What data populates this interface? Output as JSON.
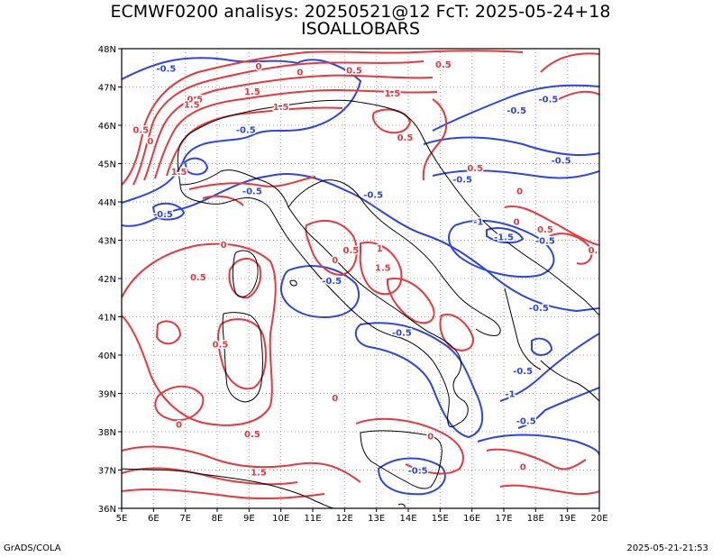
{
  "header": {
    "line1": "ECMWF0200 analisys: 20250521@12 FcT: 2025-05-24+18",
    "line2": "ISOALLOBARS"
  },
  "footer": {
    "left": "GrADS/COLA",
    "right": "2025-05-21-21:53"
  },
  "map": {
    "lon_range": [
      5,
      20
    ],
    "lat_range": [
      36,
      48
    ],
    "lon_ticks": [
      "5E",
      "6E",
      "7E",
      "8E",
      "9E",
      "10E",
      "11E",
      "12E",
      "13E",
      "14E",
      "15E",
      "16E",
      "17E",
      "18E",
      "19E",
      "20E"
    ],
    "lat_ticks": [
      "36N",
      "37N",
      "38N",
      "39N",
      "40N",
      "41N",
      "42N",
      "43N",
      "44N",
      "45N",
      "46N",
      "47N",
      "48N"
    ],
    "grid": true,
    "colors": {
      "positive": "#e8383d",
      "negative": "#2d45e6",
      "coast": "#000000",
      "grid": "#a0a0a0"
    },
    "contour_labels": [
      {
        "text": "-0.5",
        "sign": "neg",
        "lon": 6.4,
        "lat": 47.5
      },
      {
        "text": "0",
        "sign": "pos",
        "lon": 9.3,
        "lat": 47.55
      },
      {
        "text": "0.5",
        "sign": "pos",
        "lon": 7.3,
        "lat": 46.7
      },
      {
        "text": "1.5",
        "sign": "pos",
        "lon": 7.2,
        "lat": 46.55
      },
      {
        "text": "1.5",
        "sign": "pos",
        "lon": 9.1,
        "lat": 46.9
      },
      {
        "text": "1.5",
        "sign": "pos",
        "lon": 10.0,
        "lat": 46.5
      },
      {
        "text": "0",
        "sign": "pos",
        "lon": 10.6,
        "lat": 47.4
      },
      {
        "text": "0.5",
        "sign": "pos",
        "lon": 12.3,
        "lat": 47.45
      },
      {
        "text": "1.5",
        "sign": "pos",
        "lon": 13.5,
        "lat": 46.85
      },
      {
        "text": "0.5",
        "sign": "pos",
        "lon": 15.1,
        "lat": 47.6
      },
      {
        "text": "-0.5",
        "sign": "neg",
        "lon": 17.4,
        "lat": 46.4
      },
      {
        "text": "-0.5",
        "sign": "neg",
        "lon": 18.4,
        "lat": 46.7
      },
      {
        "text": "0.5",
        "sign": "pos",
        "lon": 5.6,
        "lat": 45.9
      },
      {
        "text": "0",
        "sign": "pos",
        "lon": 5.9,
        "lat": 45.6
      },
      {
        "text": "-0.5",
        "sign": "neg",
        "lon": 8.9,
        "lat": 45.9
      },
      {
        "text": "1.5",
        "sign": "pos",
        "lon": 6.8,
        "lat": 44.8
      },
      {
        "text": "0.5",
        "sign": "pos",
        "lon": 13.9,
        "lat": 45.7
      },
      {
        "text": "0.5",
        "sign": "pos",
        "lon": 16.1,
        "lat": 44.9
      },
      {
        "text": "-0.5",
        "sign": "neg",
        "lon": 15.7,
        "lat": 44.6
      },
      {
        "text": "-0.5",
        "sign": "neg",
        "lon": 18.8,
        "lat": 45.1
      },
      {
        "text": "0",
        "sign": "pos",
        "lon": 17.5,
        "lat": 44.3
      },
      {
        "text": "-0.5",
        "sign": "neg",
        "lon": 9.1,
        "lat": 44.3
      },
      {
        "text": "-0.5",
        "sign": "neg",
        "lon": 12.9,
        "lat": 44.2
      },
      {
        "text": "-0.5",
        "sign": "neg",
        "lon": 6.3,
        "lat": 43.7
      },
      {
        "text": "-1",
        "sign": "neg",
        "lon": 16.2,
        "lat": 43.5
      },
      {
        "text": "0",
        "sign": "pos",
        "lon": 17.4,
        "lat": 43.5
      },
      {
        "text": "0.5",
        "sign": "pos",
        "lon": 18.3,
        "lat": 43.3
      },
      {
        "text": "-1.5",
        "sign": "neg",
        "lon": 17.0,
        "lat": 43.1
      },
      {
        "text": "-0.5",
        "sign": "neg",
        "lon": 18.3,
        "lat": 43.0
      },
      {
        "text": "0.5",
        "sign": "pos",
        "lon": 19.9,
        "lat": 42.75
      },
      {
        "text": "0",
        "sign": "pos",
        "lon": 8.2,
        "lat": 42.9
      },
      {
        "text": "0.5",
        "sign": "pos",
        "lon": 12.2,
        "lat": 42.75
      },
      {
        "text": "0",
        "sign": "pos",
        "lon": 11.7,
        "lat": 42.5
      },
      {
        "text": "1",
        "sign": "pos",
        "lon": 13.1,
        "lat": 42.8
      },
      {
        "text": "1.5",
        "sign": "pos",
        "lon": 13.2,
        "lat": 42.3
      },
      {
        "text": "-0.5",
        "sign": "neg",
        "lon": 11.6,
        "lat": 41.95
      },
      {
        "text": "0.5",
        "sign": "pos",
        "lon": 7.4,
        "lat": 42.05
      },
      {
        "text": "-0.5",
        "sign": "neg",
        "lon": 18.1,
        "lat": 41.25
      },
      {
        "text": "-0.5",
        "sign": "neg",
        "lon": 13.8,
        "lat": 40.6
      },
      {
        "text": "0.5",
        "sign": "pos",
        "lon": 8.1,
        "lat": 40.3
      },
      {
        "text": "-0.5",
        "sign": "neg",
        "lon": 17.6,
        "lat": 39.6
      },
      {
        "text": "-1",
        "sign": "neg",
        "lon": 17.2,
        "lat": 39.0
      },
      {
        "text": "0",
        "sign": "pos",
        "lon": 11.7,
        "lat": 38.9
      },
      {
        "text": "0",
        "sign": "pos",
        "lon": 6.8,
        "lat": 38.2
      },
      {
        "text": "0.5",
        "sign": "pos",
        "lon": 9.1,
        "lat": 37.95
      },
      {
        "text": "-0.5",
        "sign": "neg",
        "lon": 17.7,
        "lat": 38.3
      },
      {
        "text": "0",
        "sign": "pos",
        "lon": 14.7,
        "lat": 37.9
      },
      {
        "text": "1.5",
        "sign": "pos",
        "lon": 9.3,
        "lat": 36.95
      },
      {
        "text": "0",
        "sign": "pos",
        "lon": 17.6,
        "lat": 37.1
      },
      {
        "text": "-0.5",
        "sign": "neg",
        "lon": 14.3,
        "lat": 37.0
      }
    ]
  }
}
